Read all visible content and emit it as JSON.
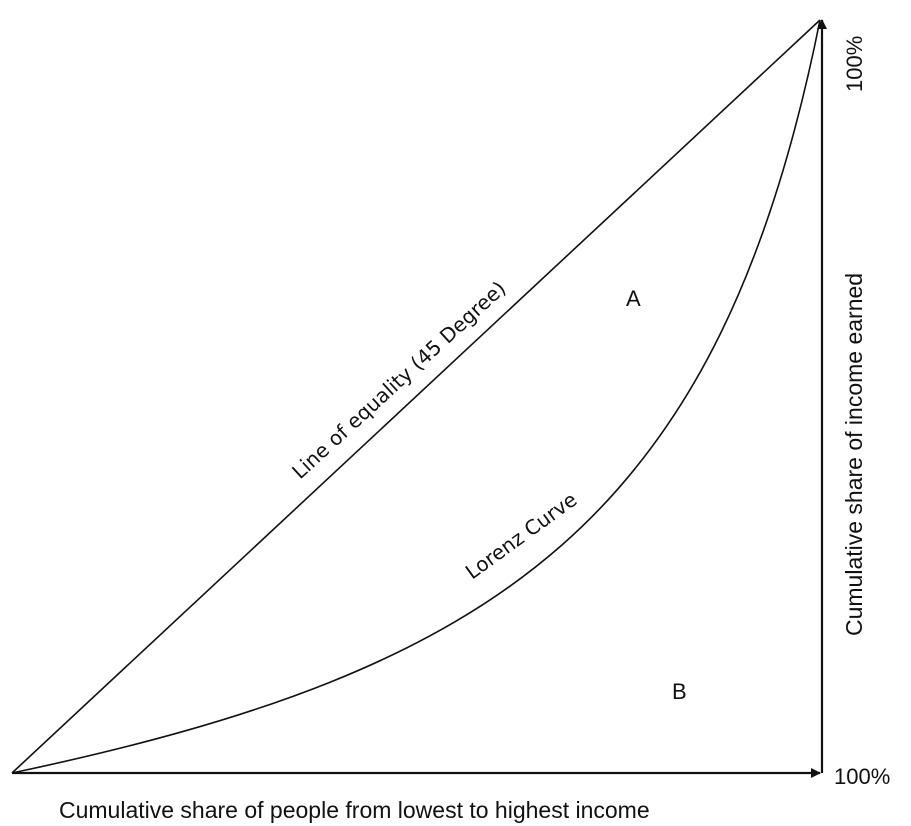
{
  "diagram": {
    "x_axis_label": "Cumulative share of people from lowest to highest income",
    "y_axis_label": "Cumulative share of income earned",
    "x_end_tick": "100%",
    "y_end_tick": "100%",
    "equality_line_label": "Line of equality (45 Degree)",
    "lorenz_curve_label": "Lorenz Curve",
    "region_a_label": "A",
    "region_b_label": "B",
    "line_color": "#111111"
  }
}
